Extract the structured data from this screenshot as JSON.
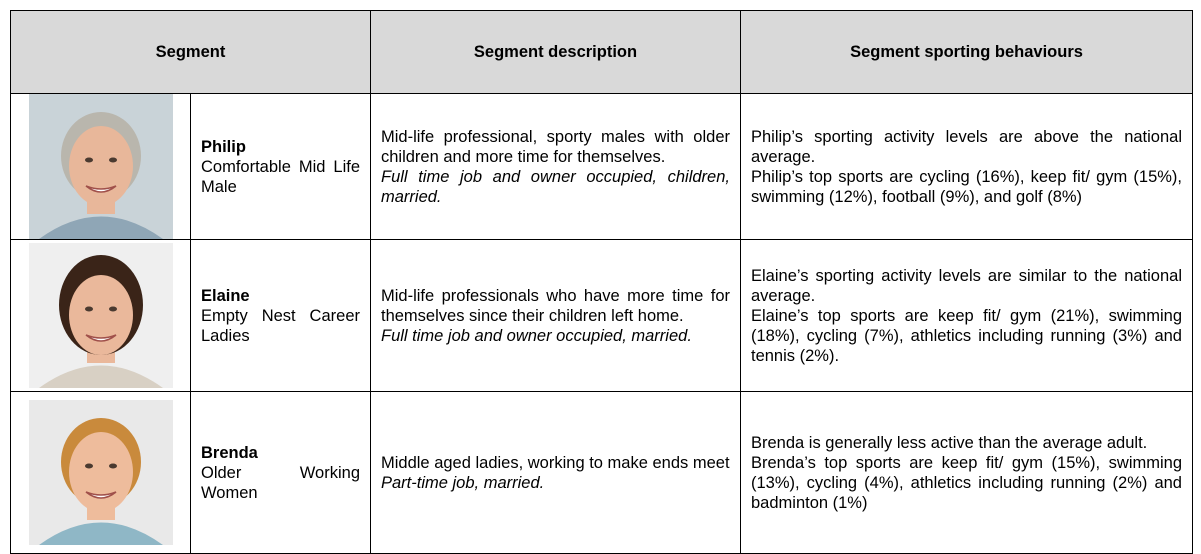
{
  "table": {
    "header": [
      "Segment",
      "Segment description",
      "Segment sporting behaviours"
    ],
    "rows": [
      {
        "name": "Philip",
        "label": "Comfortable Mid Life Male",
        "description": "Mid-life professional, sporty males with older children and more time for themselves.",
        "details": "Full time job and owner occupied, children, married.",
        "activity": "Philip’s sporting activity levels are above the national average.",
        "top_sports": "Philip’s top sports are cycling (16%), keep fit/ gym (15%), swimming (12%), football (9%), and golf (8%)"
      },
      {
        "name": "Elaine",
        "label": "Empty Nest Career Ladies",
        "description": "Mid-life professionals who have more time for themselves since their children left home.",
        "details": "Full time job and owner occupied, married.",
        "activity": "Elaine’s sporting activity levels are similar to the national average.",
        "top_sports": "Elaine’s top sports are keep fit/ gym (21%), swimming (18%), cycling (7%), athletics including running (3%) and tennis (2%)."
      },
      {
        "name": "Brenda",
        "label": "Older Working Women",
        "description": "Middle aged ladies, working to make ends meet",
        "details": "Part-time job, married.",
        "activity": "Brenda is generally less active than the average adult.",
        "top_sports": "Brenda’s top sports are keep fit/ gym (15%), swimming (13%), cycling (4%), athletics including running (2%) and badminton (1%)"
      }
    ]
  }
}
